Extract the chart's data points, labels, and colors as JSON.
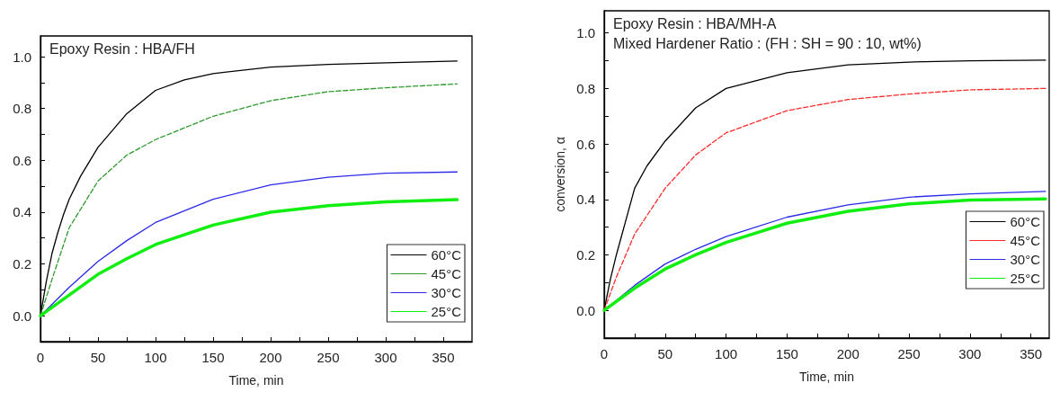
{
  "chart_data": [
    {
      "type": "line",
      "xlabel": "Time, min",
      "annotations": [
        "Epoxy Resin : HBA/FH"
      ],
      "xlim": [
        0,
        375
      ],
      "ylim": [
        -0.1,
        1.08
      ],
      "xticks": [
        0,
        {
          "value": 25,
          "label": null
        },
        50,
        {
          "value": 75,
          "label": null
        },
        100,
        {
          "value": 125,
          "label": null
        },
        150,
        {
          "value": 175,
          "label": null
        },
        200,
        {
          "value": 225,
          "label": null
        },
        250,
        {
          "value": 275,
          "label": null
        },
        300,
        {
          "value": 325,
          "label": null
        },
        350
      ],
      "yticks": [
        {
          "value": 0,
          "label": "0.0"
        },
        {
          "value": 0.1,
          "label": null
        },
        0.2,
        {
          "value": 0.3,
          "label": null
        },
        0.4,
        {
          "value": 0.5,
          "label": null
        },
        0.6,
        {
          "value": 0.7,
          "label": null
        },
        0.8,
        {
          "value": 0.9,
          "label": null
        },
        {
          "value": 1,
          "label": "1.0"
        }
      ],
      "grid": false,
      "legend": "bottom right",
      "marker": "none",
      "series": [
        {
          "name": "60°C",
          "color": "#000000",
          "line_style": "solid",
          "x": [
            0,
            5,
            10,
            15,
            20,
            25,
            35,
            50,
            75,
            100,
            125,
            150,
            200,
            250,
            300,
            362
          ],
          "values": [
            0,
            0.13,
            0.24,
            0.32,
            0.39,
            0.45,
            0.54,
            0.65,
            0.78,
            0.87,
            0.91,
            0.935,
            0.96,
            0.97,
            0.976,
            0.983
          ]
        },
        {
          "name": "45°C",
          "color": "#2e9a2e",
          "line_style": "dashed",
          "x": [
            0,
            5,
            10,
            25,
            50,
            75,
            100,
            150,
            200,
            250,
            300,
            362
          ],
          "values": [
            0,
            0.07,
            0.14,
            0.34,
            0.52,
            0.62,
            0.68,
            0.77,
            0.83,
            0.865,
            0.88,
            0.895
          ]
        },
        {
          "name": "30°C",
          "color": "#2a2ae8",
          "line_style": "solid",
          "x": [
            0,
            25,
            50,
            75,
            100,
            150,
            200,
            250,
            300,
            362
          ],
          "values": [
            0,
            0.11,
            0.21,
            0.29,
            0.36,
            0.45,
            0.505,
            0.535,
            0.55,
            0.555
          ]
        },
        {
          "name": "25°C",
          "color": "#11ee11",
          "line_style": "solid",
          "x": [
            0,
            25,
            50,
            75,
            100,
            150,
            200,
            250,
            300,
            362
          ],
          "values": [
            0,
            0.08,
            0.16,
            0.22,
            0.275,
            0.35,
            0.4,
            0.425,
            0.44,
            0.448
          ]
        }
      ]
    },
    {
      "type": "line",
      "xlabel": "Time, min",
      "ylabel": "conversion, α",
      "annotations": [
        "Epoxy Resin : HBA/MH-A",
        "Mixed Hardener Ratio : (FH : SH = 90 : 10, wt%)"
      ],
      "xlim": [
        0,
        365
      ],
      "ylim": [
        -0.1,
        1.08
      ],
      "xticks": [
        0,
        {
          "value": 25,
          "label": null
        },
        50,
        {
          "value": 75,
          "label": null
        },
        100,
        {
          "value": 125,
          "label": null
        },
        150,
        {
          "value": 175,
          "label": null
        },
        200,
        {
          "value": 225,
          "label": null
        },
        250,
        {
          "value": 275,
          "label": null
        },
        300,
        {
          "value": 325,
          "label": null
        },
        350
      ],
      "yticks": [
        {
          "value": 0,
          "label": "0.0"
        },
        {
          "value": 0.1,
          "label": null
        },
        0.2,
        {
          "value": 0.3,
          "label": null
        },
        0.4,
        {
          "value": 0.5,
          "label": null
        },
        0.6,
        {
          "value": 0.7,
          "label": null
        },
        0.8,
        {
          "value": 0.9,
          "label": null
        },
        {
          "value": 1,
          "label": "1.0"
        }
      ],
      "grid": false,
      "legend": "bottom right",
      "marker": "none",
      "series": [
        {
          "name": "60°C",
          "color": "#000000",
          "line_style": "solid",
          "x": [
            0,
            5,
            10,
            15,
            25,
            35,
            50,
            75,
            100,
            150,
            200,
            250,
            300,
            362
          ],
          "values": [
            0,
            0.11,
            0.2,
            0.28,
            0.44,
            0.52,
            0.61,
            0.73,
            0.8,
            0.857,
            0.885,
            0.895,
            0.9,
            0.902
          ]
        },
        {
          "name": "45°C",
          "color": "#ff2a2a",
          "line_style": "dashed",
          "x": [
            0,
            5,
            10,
            25,
            50,
            75,
            100,
            150,
            200,
            250,
            300,
            362
          ],
          "values": [
            0,
            0.06,
            0.12,
            0.275,
            0.44,
            0.56,
            0.64,
            0.72,
            0.76,
            0.78,
            0.795,
            0.8
          ]
        },
        {
          "name": "30°C",
          "color": "#2a2ae8",
          "line_style": "solid",
          "x": [
            0,
            25,
            50,
            75,
            100,
            150,
            200,
            250,
            300,
            362
          ],
          "values": [
            0,
            0.09,
            0.167,
            0.22,
            0.266,
            0.336,
            0.38,
            0.408,
            0.42,
            0.429
          ]
        },
        {
          "name": "25°C",
          "color": "#11ee11",
          "line_style": "solid",
          "x": [
            0,
            25,
            50,
            75,
            100,
            150,
            200,
            250,
            300,
            362
          ],
          "values": [
            0,
            0.08,
            0.149,
            0.2,
            0.245,
            0.314,
            0.357,
            0.384,
            0.398,
            0.402
          ]
        }
      ]
    }
  ]
}
